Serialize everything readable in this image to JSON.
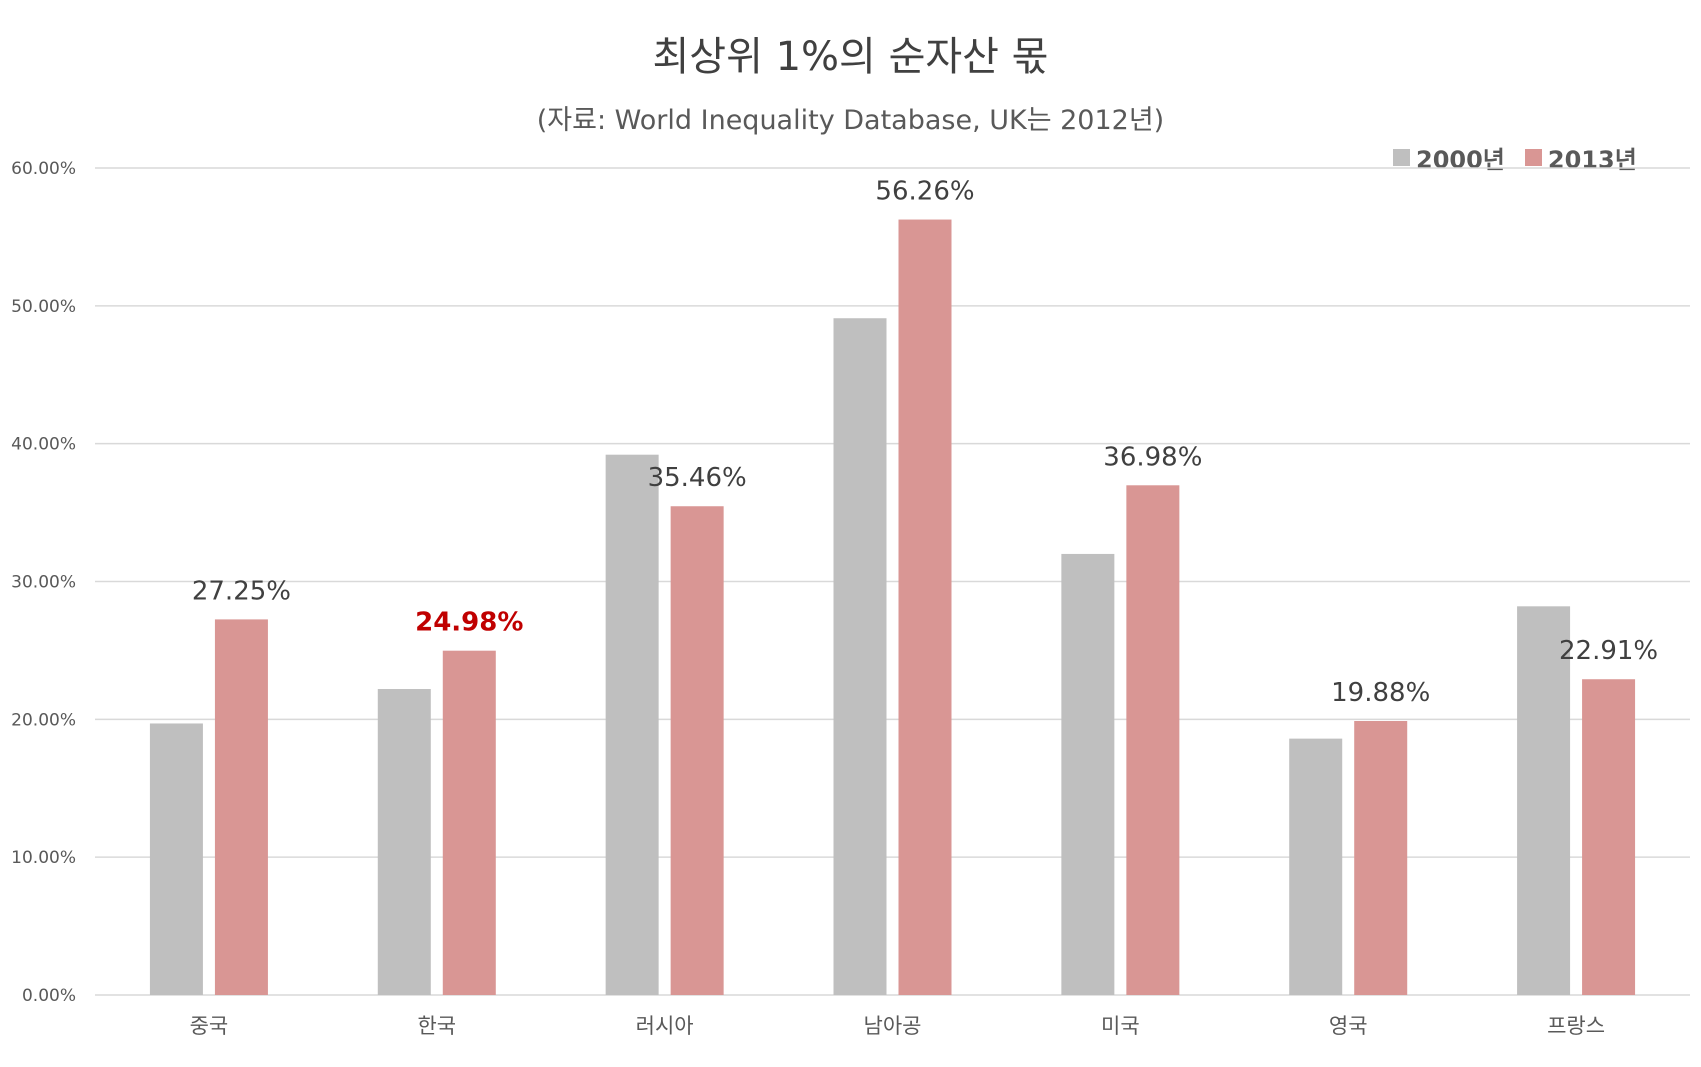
{
  "chart_data": {
    "type": "bar",
    "title": "최상위 1%의 순자산 몫",
    "subtitle": "(자료: World Inequality Database, UK는 2012년)",
    "categories": [
      "중국",
      "한국",
      "러시아",
      "남아공",
      "미국",
      "영국",
      "프랑스"
    ],
    "series": [
      {
        "name": "2000년",
        "color": "#bfbfbf",
        "values": [
          19.7,
          22.2,
          39.2,
          49.1,
          32.0,
          18.6,
          28.2
        ]
      },
      {
        "name": "2013년",
        "color": "#d99694",
        "values": [
          27.25,
          24.98,
          35.46,
          56.26,
          36.98,
          19.88,
          22.91
        ]
      }
    ],
    "data_labels": [
      "27.25%",
      "24.98%",
      "35.46%",
      "56.26%",
      "36.98%",
      "19.88%",
      "22.91%"
    ],
    "highlight_label_index": 1,
    "highlight_color": "#c00000",
    "yticks": [
      "0.00%",
      "10.00%",
      "20.00%",
      "30.00%",
      "40.00%",
      "50.00%",
      "60.00%"
    ],
    "ylim": [
      0,
      60
    ],
    "grid": true,
    "legend_position": "top-right"
  }
}
